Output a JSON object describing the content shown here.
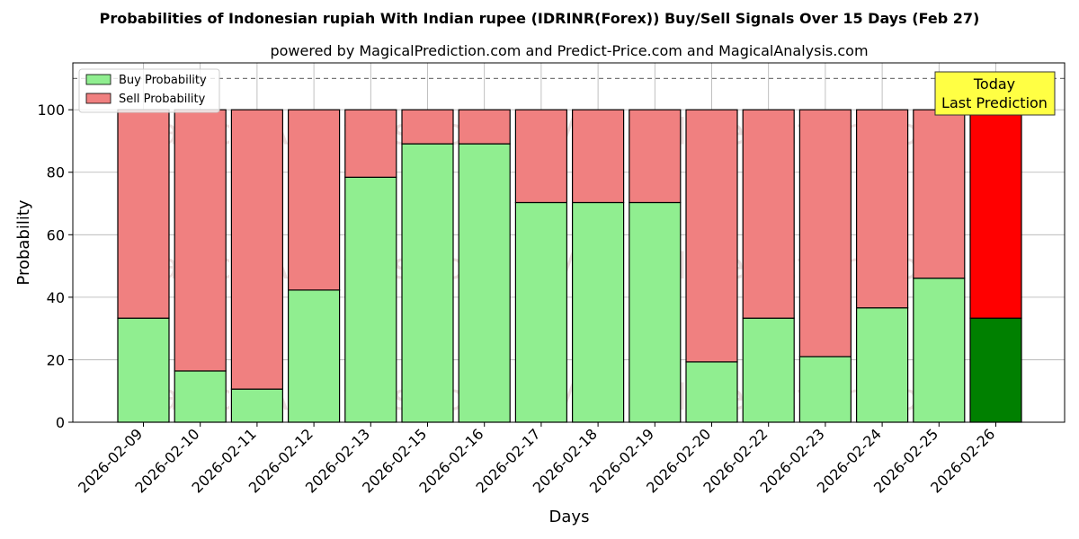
{
  "chart_data": {
    "type": "bar",
    "title": "Probabilities of Indonesian rupiah With Indian rupee (IDRINR(Forex)) Buy/Sell Signals Over 15 Days (Feb 27)",
    "subtitle": "powered by MagicalPrediction.com and Predict-Price.com and MagicalAnalysis.com",
    "xlabel": "Days",
    "ylabel": "Probability",
    "ylim": [
      0,
      115
    ],
    "yticks": [
      0,
      20,
      40,
      60,
      80,
      100
    ],
    "threshold_line": 110,
    "categories": [
      "2026-02-09",
      "2026-02-10",
      "2026-02-11",
      "2026-02-12",
      "2026-02-13",
      "2026-02-15",
      "2026-02-16",
      "2026-02-17",
      "2026-02-18",
      "2026-02-19",
      "2026-02-20",
      "2026-02-22",
      "2026-02-23",
      "2026-02-24",
      "2026-02-25",
      "2026-02-26"
    ],
    "series": [
      {
        "name": "Buy Probability",
        "color": "#90ee90",
        "highlight_color": "#008000",
        "values": [
          33.3,
          16.4,
          10.6,
          42.3,
          78.4,
          89.1,
          89.1,
          70.3,
          70.3,
          70.3,
          19.3,
          33.3,
          21.0,
          36.6,
          46.1,
          33.3
        ]
      },
      {
        "name": "Sell Probability",
        "color": "#f08080",
        "highlight_color": "#ff0000",
        "values": [
          66.7,
          83.6,
          89.4,
          57.7,
          21.6,
          10.9,
          10.9,
          29.7,
          29.7,
          29.7,
          80.7,
          66.7,
          79.0,
          63.4,
          53.9,
          66.7
        ]
      }
    ],
    "highlight_index": 15,
    "legend_position": "top-left",
    "grid": true,
    "annotation": {
      "line1": "Today",
      "line2": "Last Prediction",
      "color": "#ffff44"
    },
    "watermarks": [
      "MagicalAnalysis.com",
      "MagicalPrediction.com"
    ]
  }
}
